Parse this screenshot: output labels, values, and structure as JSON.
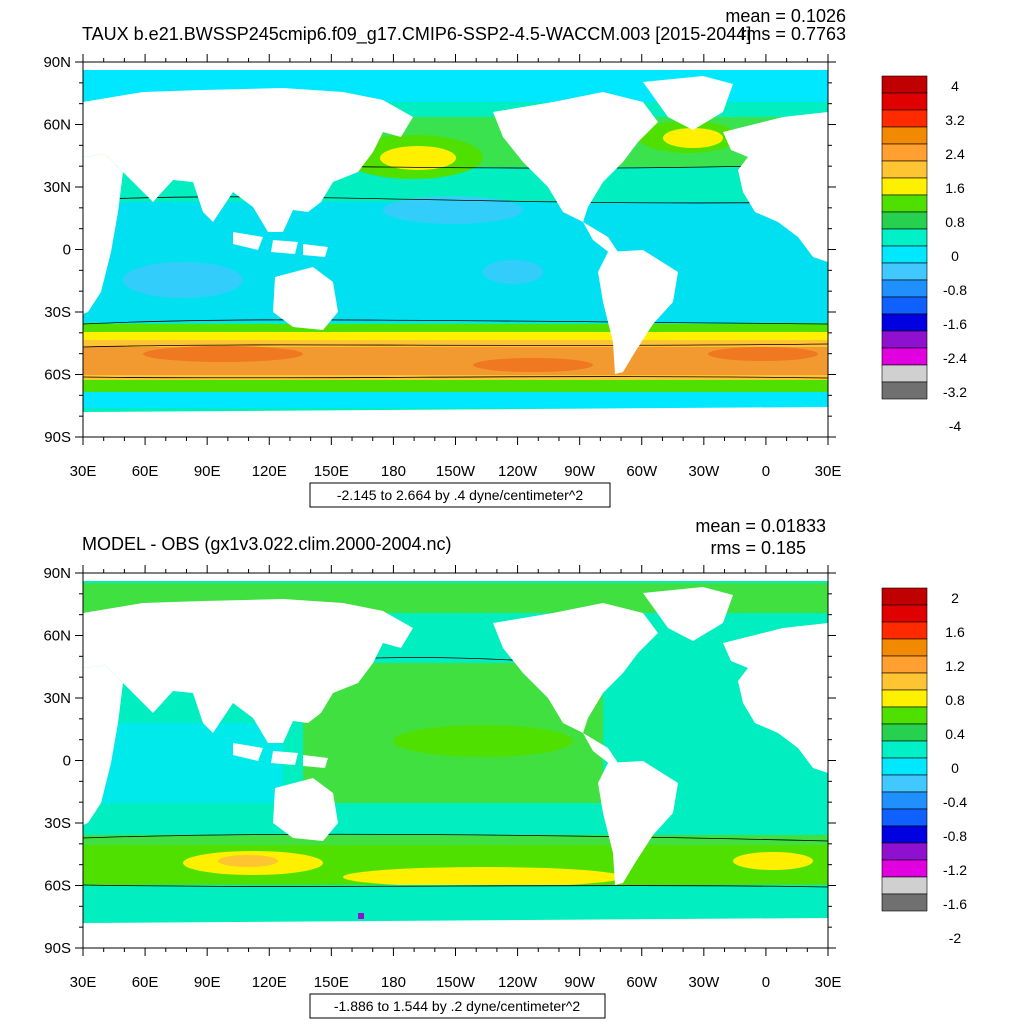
{
  "panels": [
    {
      "title": "TAUX b.e21.BWSSP245cmip6.f09_g17.CMIP6-SSP2-4.5-WACCM.003 [2015-2044]",
      "mean_label": "mean = 0.1026",
      "rms_label": "rms = 0.7763",
      "range_label": "-2.145 to 2.664 by .4 dyne/centimeter^2",
      "colorbar_labels": [
        "4",
        "3.2",
        "2.4",
        "1.6",
        "0.8",
        "0",
        "-0.8",
        "-1.6",
        "-2.4",
        "-3.2",
        "-4"
      ]
    },
    {
      "title": "MODEL - OBS (gx1v3.022.clim.2000-2004.nc)",
      "mean_label": "mean = 0.01833",
      "rms_label": "rms = 0.185",
      "range_label": "-1.886 to 1.544 by .2 dyne/centimeter^2",
      "colorbar_labels": [
        "2",
        "1.6",
        "1.2",
        "0.8",
        "0.4",
        "0",
        "-0.4",
        "-0.8",
        "-1.2",
        "-1.6",
        "-2"
      ]
    }
  ],
  "lat_labels": [
    "90N",
    "60N",
    "30N",
    "0",
    "30S",
    "60S",
    "90S"
  ],
  "lon_labels": [
    "30E",
    "60E",
    "90E",
    "120E",
    "150E",
    "180",
    "150W",
    "120W",
    "90W",
    "60W",
    "30W",
    "0",
    "30E"
  ],
  "colorbar_colors": [
    "#c00000",
    "#e00000",
    "#ff2a00",
    "#f28a00",
    "#ffa030",
    "#ffc432",
    "#fff000",
    "#50e000",
    "#28d050",
    "#00f0c8",
    "#00e8ff",
    "#40c8ff",
    "#2090ff",
    "#1060ff",
    "#0000e0",
    "#9010d0",
    "#e000e0",
    "#d0d0d0",
    "#707070"
  ],
  "map_colors": {
    "land": "#ffffff",
    "ocean_mean": "#00eec0",
    "weak_negative": "#00e0f0",
    "westerly_belt": "#ffc432",
    "westerly_core": "#f29a30",
    "westerly_edge": "#50e000",
    "midlat_positive": "#40e040",
    "contour": "#000000"
  }
}
